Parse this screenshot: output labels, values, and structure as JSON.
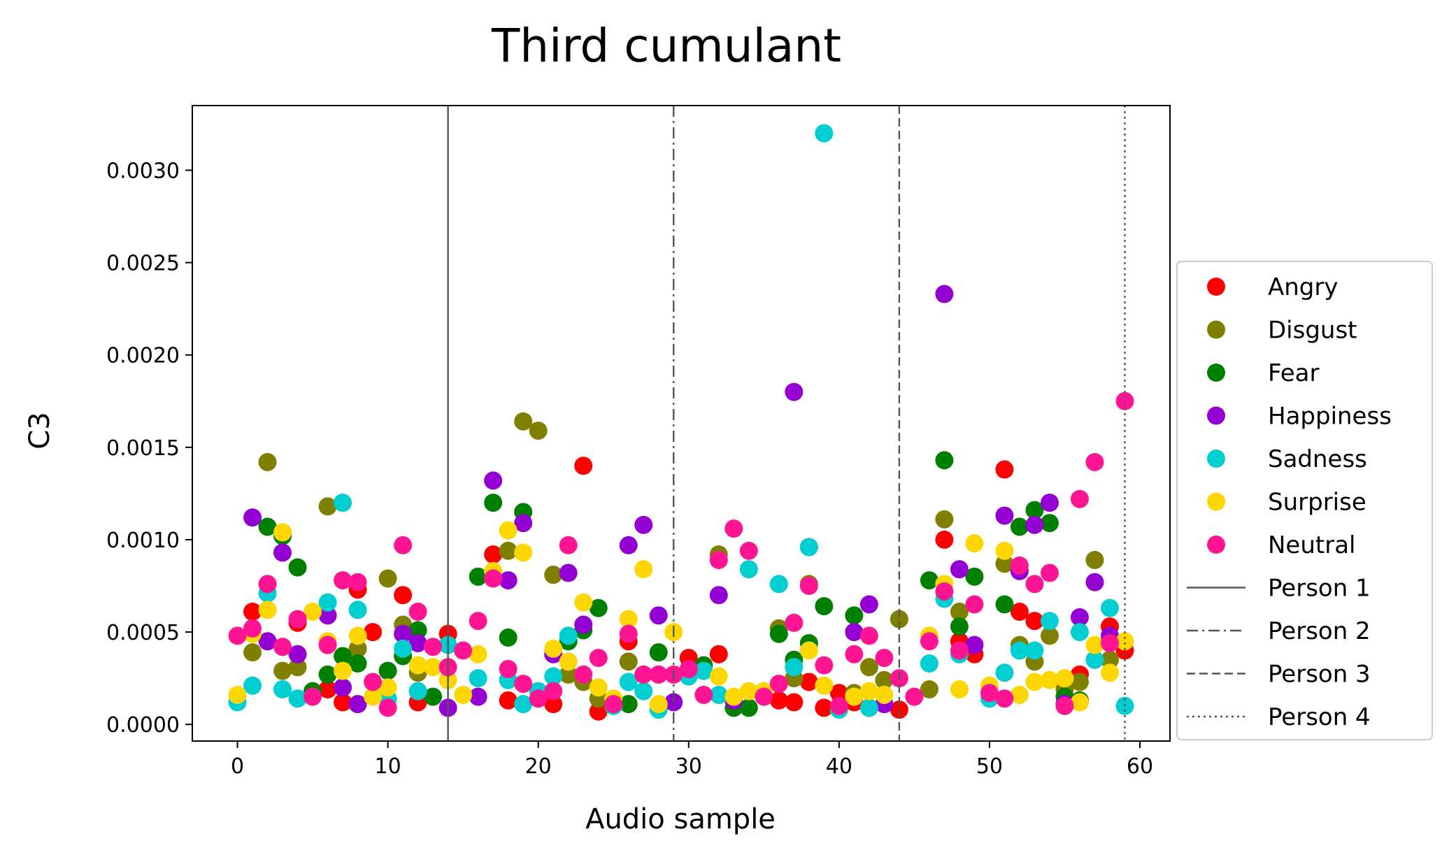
{
  "chart_data": {
    "type": "scatter",
    "title": "Third cumulant",
    "xlabel": "Audio sample",
    "ylabel": "C3",
    "xlim": [
      -3,
      62
    ],
    "ylim": [
      -9e-05,
      0.00335
    ],
    "xticks": [
      0,
      10,
      20,
      30,
      40,
      50,
      60
    ],
    "xtick_labels": [
      "0",
      "10",
      "20",
      "30",
      "40",
      "50",
      "60"
    ],
    "yticks": [
      0.0,
      0.0005,
      0.001,
      0.0015,
      0.002,
      0.0025,
      0.003
    ],
    "ytick_labels": [
      "0.0000",
      "0.0005",
      "0.0010",
      "0.0015",
      "0.0020",
      "0.0025",
      "0.0030"
    ],
    "grid": false,
    "legend_position": "right",
    "series": [
      {
        "name": "Angry",
        "color": "#ff0000",
        "x": [
          1,
          4,
          6,
          7,
          8,
          9,
          11,
          12,
          14,
          17,
          18,
          21,
          23,
          24,
          26,
          30,
          32,
          36,
          37,
          38,
          39,
          40,
          41,
          42,
          44,
          47,
          48,
          49,
          51,
          52,
          53,
          56,
          58,
          59
        ],
        "y": [
          0.00061,
          0.00055,
          0.00019,
          0.00012,
          0.00073,
          0.0005,
          0.0007,
          0.00012,
          0.00049,
          0.00092,
          0.00013,
          0.00011,
          0.0014,
          7e-05,
          0.00045,
          0.00036,
          0.00038,
          0.00013,
          0.00012,
          0.00023,
          9e-05,
          0.00017,
          0.00012,
          9e-05,
          8e-05,
          0.001,
          0.00045,
          0.00038,
          0.00138,
          0.00061,
          0.00056,
          0.00027,
          0.00053,
          0.0004
        ]
      },
      {
        "name": "Disgust",
        "color": "#808000",
        "x": [
          1,
          2,
          3,
          4,
          6,
          8,
          10,
          11,
          12,
          18,
          19,
          20,
          21,
          22,
          23,
          24,
          26,
          32,
          36,
          37,
          38,
          41,
          42,
          43,
          44,
          46,
          47,
          48,
          51,
          52,
          53,
          54,
          55,
          56,
          57,
          58
        ],
        "y": [
          0.00039,
          0.00142,
          0.00029,
          0.00031,
          0.00118,
          0.00041,
          0.00079,
          0.00054,
          0.00028,
          0.00094,
          0.00164,
          0.00159,
          0.00081,
          0.00027,
          0.00023,
          0.00014,
          0.00034,
          0.00092,
          0.00052,
          0.00025,
          0.00076,
          0.00017,
          0.00031,
          0.00024,
          0.00057,
          0.00019,
          0.00111,
          0.00061,
          0.00087,
          0.00043,
          0.00034,
          0.00048,
          0.00019,
          0.00023,
          0.00089,
          0.00035
        ]
      },
      {
        "name": "Fear",
        "color": "#008000",
        "x": [
          2,
          3,
          4,
          5,
          6,
          7,
          8,
          10,
          11,
          12,
          13,
          16,
          17,
          18,
          19,
          22,
          23,
          24,
          26,
          28,
          31,
          33,
          34,
          36,
          37,
          38,
          39,
          41,
          46,
          47,
          48,
          49,
          51,
          52,
          53,
          54,
          55,
          56
        ],
        "y": [
          0.00107,
          0.00102,
          0.00085,
          0.00018,
          0.00027,
          0.00037,
          0.00033,
          0.00029,
          0.00037,
          0.00051,
          0.00015,
          0.0008,
          0.0012,
          0.00047,
          0.00115,
          0.00045,
          0.00051,
          0.00063,
          0.00011,
          0.00039,
          0.00032,
          9e-05,
          9e-05,
          0.00049,
          0.00035,
          0.00044,
          0.00064,
          0.00059,
          0.00078,
          0.00143,
          0.00053,
          0.0008,
          0.00065,
          0.00107,
          0.00116,
          0.00109,
          0.00015,
          0.00013
        ]
      },
      {
        "name": "Happiness",
        "color": "#9400d3",
        "x": [
          1,
          2,
          3,
          4,
          6,
          7,
          8,
          11,
          12,
          14,
          16,
          17,
          18,
          19,
          21,
          22,
          23,
          26,
          27,
          28,
          29,
          32,
          33,
          37,
          38,
          41,
          42,
          43,
          47,
          48,
          49,
          51,
          52,
          53,
          54,
          55,
          56,
          57,
          58
        ],
        "y": [
          0.00112,
          0.00045,
          0.00093,
          0.00038,
          0.00059,
          0.0002,
          0.00011,
          0.00049,
          0.00044,
          9e-05,
          0.00015,
          0.00132,
          0.00078,
          0.00109,
          0.00038,
          0.00082,
          0.00054,
          0.00097,
          0.00108,
          0.00059,
          0.00012,
          0.0007,
          0.00013,
          0.0018,
          0.00096,
          0.0005,
          0.00065,
          0.00011,
          0.00233,
          0.00084,
          0.00043,
          0.00113,
          0.00083,
          0.00108,
          0.0012,
          0.00011,
          0.00058,
          0.00077,
          0.00048
        ]
      },
      {
        "name": "Sadness",
        "color": "#00ced1",
        "x": [
          0,
          1,
          2,
          3,
          4,
          6,
          7,
          8,
          10,
          11,
          12,
          14,
          16,
          18,
          19,
          20,
          21,
          22,
          25,
          26,
          27,
          28,
          30,
          31,
          32,
          34,
          36,
          37,
          38,
          39,
          40,
          42,
          46,
          47,
          48,
          50,
          51,
          52,
          53,
          54,
          56,
          57,
          58,
          59
        ],
        "y": [
          0.00012,
          0.00021,
          0.00071,
          0.00019,
          0.00014,
          0.00066,
          0.0012,
          0.00062,
          0.00014,
          0.00041,
          0.00018,
          0.00043,
          0.00025,
          0.00024,
          0.00011,
          0.00018,
          0.00026,
          0.00048,
          0.0001,
          0.00023,
          0.00018,
          8e-05,
          0.00026,
          0.00029,
          0.00016,
          0.00084,
          0.00076,
          0.00031,
          0.00096,
          0.0032,
          8e-05,
          9e-05,
          0.00033,
          0.00068,
          0.00038,
          0.00014,
          0.00028,
          0.0004,
          0.0004,
          0.00056,
          0.0005,
          0.00035,
          0.00063,
          0.0001
        ]
      },
      {
        "name": "Surprise",
        "color": "#ffd700",
        "x": [
          0,
          1,
          2,
          3,
          5,
          6,
          7,
          8,
          9,
          10,
          12,
          13,
          14,
          15,
          16,
          17,
          18,
          19,
          21,
          22,
          23,
          24,
          25,
          26,
          27,
          28,
          29,
          32,
          33,
          34,
          35,
          38,
          39,
          41,
          42,
          43,
          46,
          47,
          48,
          49,
          50,
          51,
          52,
          53,
          54,
          55,
          56,
          57,
          58,
          59
        ],
        "y": [
          0.00016,
          0.00049,
          0.00062,
          0.00104,
          0.00061,
          0.00045,
          0.00029,
          0.00048,
          0.00015,
          0.0002,
          0.00032,
          0.00031,
          0.00024,
          0.00016,
          0.00038,
          0.00083,
          0.00105,
          0.00093,
          0.00041,
          0.00034,
          0.00066,
          0.0002,
          0.00014,
          0.00057,
          0.00084,
          0.00011,
          0.0005,
          0.00026,
          0.00015,
          0.00018,
          0.00018,
          0.0004,
          0.00021,
          0.00015,
          0.00018,
          0.00016,
          0.00048,
          0.00076,
          0.00019,
          0.00098,
          0.00021,
          0.00094,
          0.00016,
          0.00023,
          0.00024,
          0.00025,
          0.00012,
          0.00043,
          0.00028,
          0.00045
        ]
      },
      {
        "name": "Neutral",
        "color": "#ff1493",
        "x": [
          0,
          1,
          2,
          3,
          4,
          5,
          6,
          7,
          8,
          9,
          10,
          11,
          12,
          13,
          14,
          15,
          16,
          17,
          18,
          19,
          20,
          21,
          22,
          23,
          24,
          25,
          26,
          27,
          28,
          29,
          30,
          31,
          32,
          33,
          34,
          35,
          36,
          37,
          38,
          39,
          40,
          41,
          42,
          43,
          44,
          45,
          46,
          47,
          48,
          49,
          50,
          51,
          52,
          53,
          54,
          55,
          56,
          57,
          58,
          59
        ],
        "y": [
          0.00048,
          0.00052,
          0.00076,
          0.00042,
          0.00057,
          0.00015,
          0.00043,
          0.00078,
          0.00077,
          0.00023,
          9e-05,
          0.00097,
          0.00061,
          0.00042,
          0.00031,
          0.0004,
          0.00056,
          0.00079,
          0.0003,
          0.00022,
          0.00014,
          0.00018,
          0.00097,
          0.00027,
          0.00036,
          0.00011,
          0.00049,
          0.00027,
          0.00027,
          0.00027,
          0.0003,
          0.00016,
          0.00089,
          0.00106,
          0.00094,
          0.00015,
          0.00022,
          0.00055,
          0.00075,
          0.00032,
          0.0001,
          0.00038,
          0.00048,
          0.00036,
          0.00025,
          0.00015,
          0.00045,
          0.00072,
          0.0004,
          0.00065,
          0.00017,
          0.00014,
          0.00086,
          0.00076,
          0.00082,
          0.0001,
          0.00122,
          0.00142,
          0.00044,
          0.00175
        ]
      }
    ],
    "vlines": [
      {
        "name": "Person 1",
        "x": 14,
        "style": "solid",
        "color": "#555555"
      },
      {
        "name": "Person 2",
        "x": 29,
        "style": "dashdot",
        "color": "#555555"
      },
      {
        "name": "Person 3",
        "x": 44,
        "style": "dashed",
        "color": "#555555"
      },
      {
        "name": "Person 4",
        "x": 59,
        "style": "dotted",
        "color": "#555555"
      }
    ]
  }
}
